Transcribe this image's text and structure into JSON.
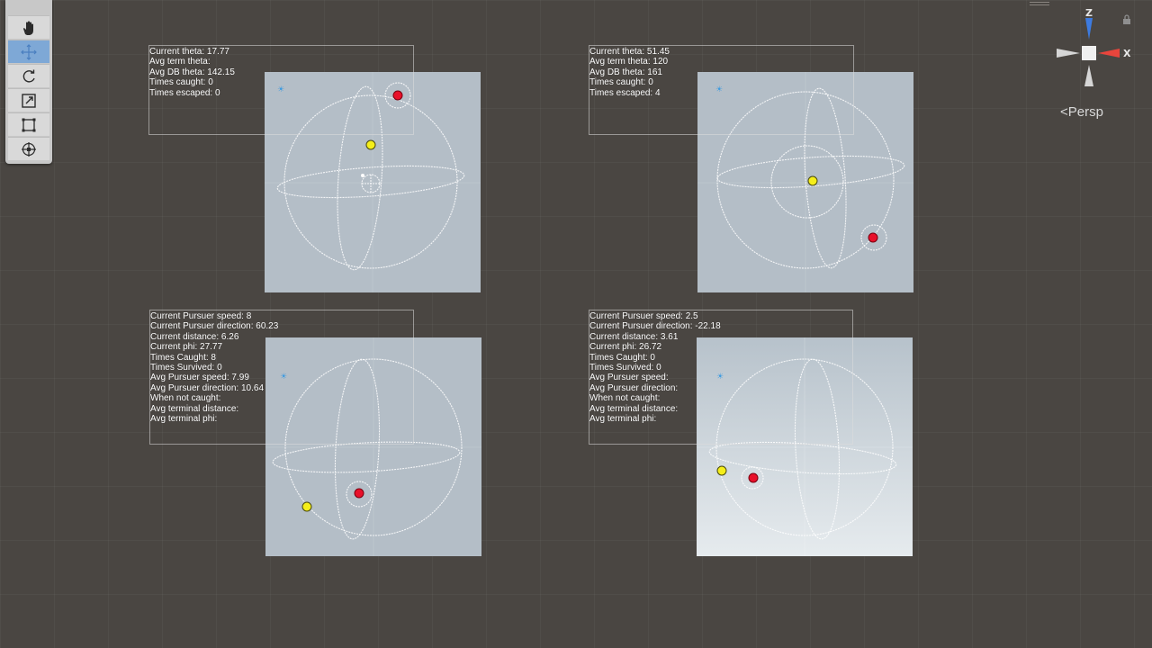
{
  "panels": {
    "top_left": {
      "lines": [
        "Current theta: 17.77",
        "Avg term theta:",
        "Avg DB theta: 142.15",
        "Times caught: 0",
        "Times escaped: 0"
      ]
    },
    "top_right": {
      "lines": [
        "Current theta: 51.45",
        "Avg term theta: 120",
        "Avg DB theta: 161",
        "Times caught: 0",
        "Times escaped: 4"
      ]
    },
    "bottom_left": {
      "lines": [
        "Current Pursuer speed: 8",
        "Current Pursuer direction: 60.23",
        "Current distance: 6.26",
        "Current phi: 27.77",
        "Times Caught: 8",
        "Times Survived: 0",
        "Avg Pursuer speed: 7.99",
        "Avg Pursuer direction: 10.64",
        "When not caught:",
        "Avg terminal distance:",
        "Avg terminal phi:"
      ]
    },
    "bottom_right": {
      "lines": [
        "Current Pursuer speed: 2.5",
        "Current Pursuer direction: -22.18",
        "Current distance: 3.61",
        "Current phi: 26.72",
        "Times Caught: 0",
        "Times Survived: 0",
        "Avg Pursuer speed:",
        "Avg Pursuer direction:",
        "When not caught:",
        "Avg terminal distance:",
        "Avg terminal phi:"
      ]
    }
  },
  "gizmo": {
    "axis_z": "Z",
    "axis_x": "X",
    "projection": "Persp",
    "projection_icon": "<"
  },
  "toolbar": {
    "tools": [
      {
        "name": "hand-tool",
        "icon": "hand-icon"
      },
      {
        "name": "move-tool",
        "icon": "move-icon",
        "active": true
      },
      {
        "name": "rotate-tool",
        "icon": "rotate-icon"
      },
      {
        "name": "scale-tool",
        "icon": "scale-icon"
      },
      {
        "name": "rect-tool",
        "icon": "rect-icon"
      },
      {
        "name": "transform-tool",
        "icon": "transform-icon"
      }
    ]
  },
  "colors": {
    "scene_bg": "#4a4642",
    "viewport_bg": "#b4bec7",
    "pursuer": "#e8102a",
    "evader": "#f5ee1a",
    "axis_x": "#e8453c",
    "axis_y": "#d6d6d6",
    "axis_z": "#3d7be0",
    "tool_active": "#7ea8d6"
  }
}
